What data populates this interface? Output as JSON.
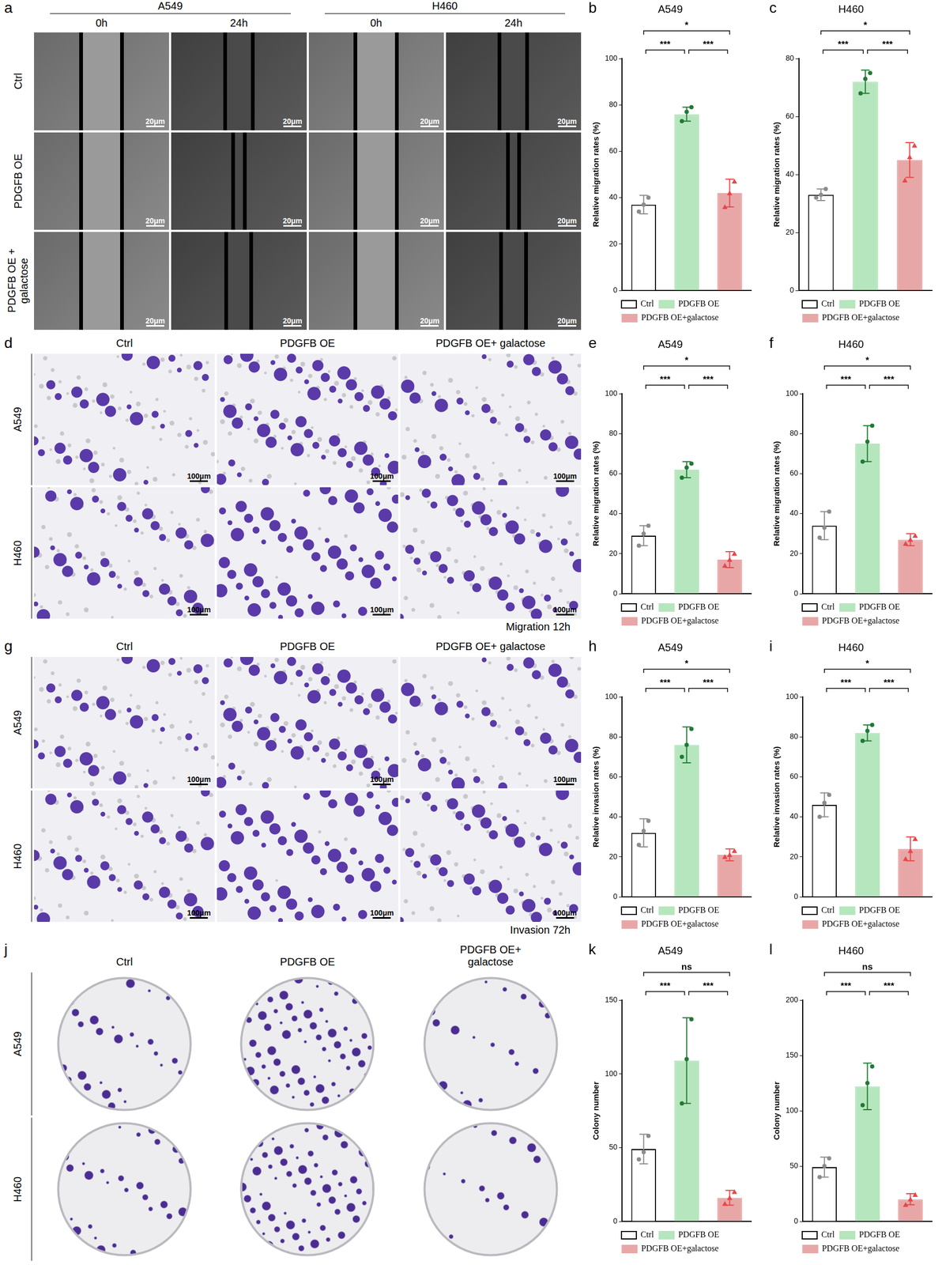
{
  "chart_data": [
    {
      "panel": "b",
      "type": "bar",
      "title": "A549",
      "y_label": "Relative migration rates (%)",
      "categories": [
        "Ctrl",
        "PDGFB OE",
        "PDGFB OE+galactose"
      ],
      "values": [
        37,
        76,
        42
      ],
      "errors": [
        4,
        3,
        6
      ],
      "points": [
        [
          34,
          37,
          40
        ],
        [
          73,
          77,
          79
        ],
        [
          36,
          42,
          47
        ]
      ],
      "colors": [
        "#ffffff",
        "#b6e6bd",
        "#e8a7a7"
      ],
      "ylim": [
        0,
        100
      ],
      "yticks": [
        0,
        20,
        40,
        60,
        80,
        100
      ],
      "grid": false,
      "legend": "bottom",
      "tick_labels": "y",
      "significance": [
        {
          "from": 0,
          "to": 1,
          "label": "***"
        },
        {
          "from": 1,
          "to": 2,
          "label": "***"
        },
        {
          "from": 0,
          "to": 2,
          "label": "*"
        }
      ]
    },
    {
      "panel": "c",
      "type": "bar",
      "title": "H460",
      "y_label": "Relative migration rates (%)",
      "categories": [
        "Ctrl",
        "PDGFB OE",
        "PDGFB OE+galactose"
      ],
      "values": [
        33,
        72,
        45
      ],
      "errors": [
        2,
        4,
        6
      ],
      "points": [
        [
          32,
          33,
          35
        ],
        [
          68,
          73,
          75
        ],
        [
          38,
          46,
          50
        ]
      ],
      "colors": [
        "#ffffff",
        "#b6e6bd",
        "#e8a7a7"
      ],
      "ylim": [
        0,
        80
      ],
      "yticks": [
        0,
        20,
        40,
        60,
        80
      ],
      "grid": false,
      "legend": "bottom",
      "tick_labels": "y",
      "significance": [
        {
          "from": 0,
          "to": 1,
          "label": "***"
        },
        {
          "from": 1,
          "to": 2,
          "label": "***"
        },
        {
          "from": 0,
          "to": 2,
          "label": "*"
        }
      ]
    },
    {
      "panel": "e",
      "type": "bar",
      "title": "A549",
      "y_label": "Relative migration rates (%)",
      "categories": [
        "Ctrl",
        "PDGFB OE",
        "PDGFB OE+galactose"
      ],
      "values": [
        29,
        62,
        17
      ],
      "errors": [
        5,
        4,
        4
      ],
      "points": [
        [
          24,
          30,
          34
        ],
        [
          58,
          63,
          65
        ],
        [
          14,
          17,
          20
        ]
      ],
      "colors": [
        "#ffffff",
        "#b6e6bd",
        "#e8a7a7"
      ],
      "ylim": [
        0,
        100
      ],
      "yticks": [
        0,
        20,
        40,
        60,
        80,
        100
      ],
      "grid": false,
      "legend": "bottom",
      "tick_labels": "y",
      "significance": [
        {
          "from": 0,
          "to": 1,
          "label": "***"
        },
        {
          "from": 1,
          "to": 2,
          "label": "***"
        },
        {
          "from": 0,
          "to": 2,
          "label": "*"
        }
      ]
    },
    {
      "panel": "f",
      "type": "bar",
      "title": "H460",
      "y_label": "Relative migration rates (%)",
      "categories": [
        "Ctrl",
        "PDGFB OE",
        "PDGFB OE+galactose"
      ],
      "values": [
        34,
        75,
        27
      ],
      "errors": [
        7,
        9,
        3
      ],
      "points": [
        [
          28,
          33,
          41
        ],
        [
          66,
          76,
          84
        ],
        [
          25,
          27,
          29
        ]
      ],
      "colors": [
        "#ffffff",
        "#b6e6bd",
        "#e8a7a7"
      ],
      "ylim": [
        0,
        100
      ],
      "yticks": [
        0,
        20,
        40,
        60,
        80,
        100
      ],
      "grid": false,
      "legend": "bottom",
      "tick_labels": "y",
      "significance": [
        {
          "from": 0,
          "to": 1,
          "label": "***"
        },
        {
          "from": 1,
          "to": 2,
          "label": "***"
        },
        {
          "from": 0,
          "to": 2,
          "label": "*"
        }
      ]
    },
    {
      "panel": "h",
      "type": "bar",
      "title": "A549",
      "y_label": "Relative invasion rates (%)",
      "categories": [
        "Ctrl",
        "PDGFB OE",
        "PDGFB OE+galactose"
      ],
      "values": [
        32,
        76,
        21
      ],
      "errors": [
        7,
        9,
        3
      ],
      "points": [
        [
          26,
          33,
          38
        ],
        [
          70,
          76,
          84
        ],
        [
          20,
          21,
          23
        ]
      ],
      "colors": [
        "#ffffff",
        "#b6e6bd",
        "#e8a7a7"
      ],
      "ylim": [
        0,
        100
      ],
      "yticks": [
        0,
        20,
        40,
        60,
        80,
        100
      ],
      "grid": false,
      "legend": "bottom",
      "tick_labels": "y",
      "significance": [
        {
          "from": 0,
          "to": 1,
          "label": "***"
        },
        {
          "from": 1,
          "to": 2,
          "label": "***"
        },
        {
          "from": 0,
          "to": 2,
          "label": "*"
        }
      ]
    },
    {
      "panel": "i",
      "type": "bar",
      "title": "H460",
      "y_label": "Relative invasion rates (%)",
      "categories": [
        "Ctrl",
        "PDGFB OE",
        "PDGFB OE+galactose"
      ],
      "values": [
        46,
        82,
        24
      ],
      "errors": [
        6,
        4,
        6
      ],
      "points": [
        [
          40,
          47,
          51
        ],
        [
          78,
          83,
          86
        ],
        [
          19,
          23,
          29
        ]
      ],
      "colors": [
        "#ffffff",
        "#b6e6bd",
        "#e8a7a7"
      ],
      "ylim": [
        0,
        100
      ],
      "yticks": [
        0,
        20,
        40,
        60,
        80,
        100
      ],
      "grid": false,
      "legend": "bottom",
      "tick_labels": "y",
      "significance": [
        {
          "from": 0,
          "to": 1,
          "label": "***"
        },
        {
          "from": 1,
          "to": 2,
          "label": "***"
        },
        {
          "from": 0,
          "to": 2,
          "label": "*"
        }
      ]
    },
    {
      "panel": "k",
      "type": "bar",
      "title": "A549",
      "y_label": "Colony number",
      "categories": [
        "Ctrl",
        "PDGFB OE",
        "PDGFB OE+galactose"
      ],
      "values": [
        49,
        109,
        16
      ],
      "errors": [
        10,
        29,
        5
      ],
      "points": [
        [
          42,
          47,
          58
        ],
        [
          80,
          110,
          137
        ],
        [
          12,
          16,
          20
        ]
      ],
      "colors": [
        "#ffffff",
        "#b6e6bd",
        "#e8a7a7"
      ],
      "ylim": [
        0,
        150
      ],
      "yticks": [
        0,
        50,
        100,
        150
      ],
      "grid": false,
      "legend": "bottom",
      "tick_labels": "y",
      "significance": [
        {
          "from": 0,
          "to": 1,
          "label": "***"
        },
        {
          "from": 1,
          "to": 2,
          "label": "***"
        },
        {
          "from": 0,
          "to": 2,
          "label": "ns"
        }
      ]
    },
    {
      "panel": "l",
      "type": "bar",
      "title": "H460",
      "y_label": "Colony number",
      "categories": [
        "Ctrl",
        "PDGFB OE",
        "PDGFB OE+galactose"
      ],
      "values": [
        49,
        122,
        20
      ],
      "errors": [
        9,
        21,
        5
      ],
      "points": [
        [
          40,
          50,
          57
        ],
        [
          105,
          125,
          140
        ],
        [
          15,
          20,
          24
        ]
      ],
      "colors": [
        "#ffffff",
        "#b6e6bd",
        "#e8a7a7"
      ],
      "ylim": [
        0,
        200
      ],
      "yticks": [
        0,
        50,
        100,
        150,
        200
      ],
      "grid": false,
      "legend": "bottom",
      "tick_labels": "y",
      "significance": [
        {
          "from": 0,
          "to": 1,
          "label": "***"
        },
        {
          "from": 1,
          "to": 2,
          "label": "***"
        },
        {
          "from": 0,
          "to": 2,
          "label": "ns"
        }
      ]
    }
  ],
  "image_panels": [
    {
      "panel": "a",
      "kind": "wound",
      "column_groups": [
        {
          "label": "A549",
          "columns": [
            "0h",
            "24h"
          ]
        },
        {
          "label": "H460",
          "columns": [
            "0h",
            "24h"
          ]
        }
      ],
      "rows": [
        "Ctrl",
        "PDGFB OE",
        "PDGFB OE + galactose"
      ],
      "scale_bar": "20μm"
    },
    {
      "panel": "d",
      "kind": "transwell",
      "columns": [
        "Ctrl",
        "PDGFB OE",
        "PDGFB OE+ galactose"
      ],
      "rows": [
        "A549",
        "H460"
      ],
      "scale_bar": "100μm",
      "caption": "Migration 12h"
    },
    {
      "panel": "g",
      "kind": "transwell",
      "columns": [
        "Ctrl",
        "PDGFB OE",
        "PDGFB OE+ galactose"
      ],
      "rows": [
        "A549",
        "H460"
      ],
      "scale_bar": "100μm",
      "caption": "Invasion 72h"
    },
    {
      "panel": "j",
      "kind": "colony",
      "columns": [
        "Ctrl",
        "PDGFB OE",
        "PDGFB OE+ galactose"
      ],
      "rows": [
        "A549",
        "H460"
      ]
    }
  ]
}
